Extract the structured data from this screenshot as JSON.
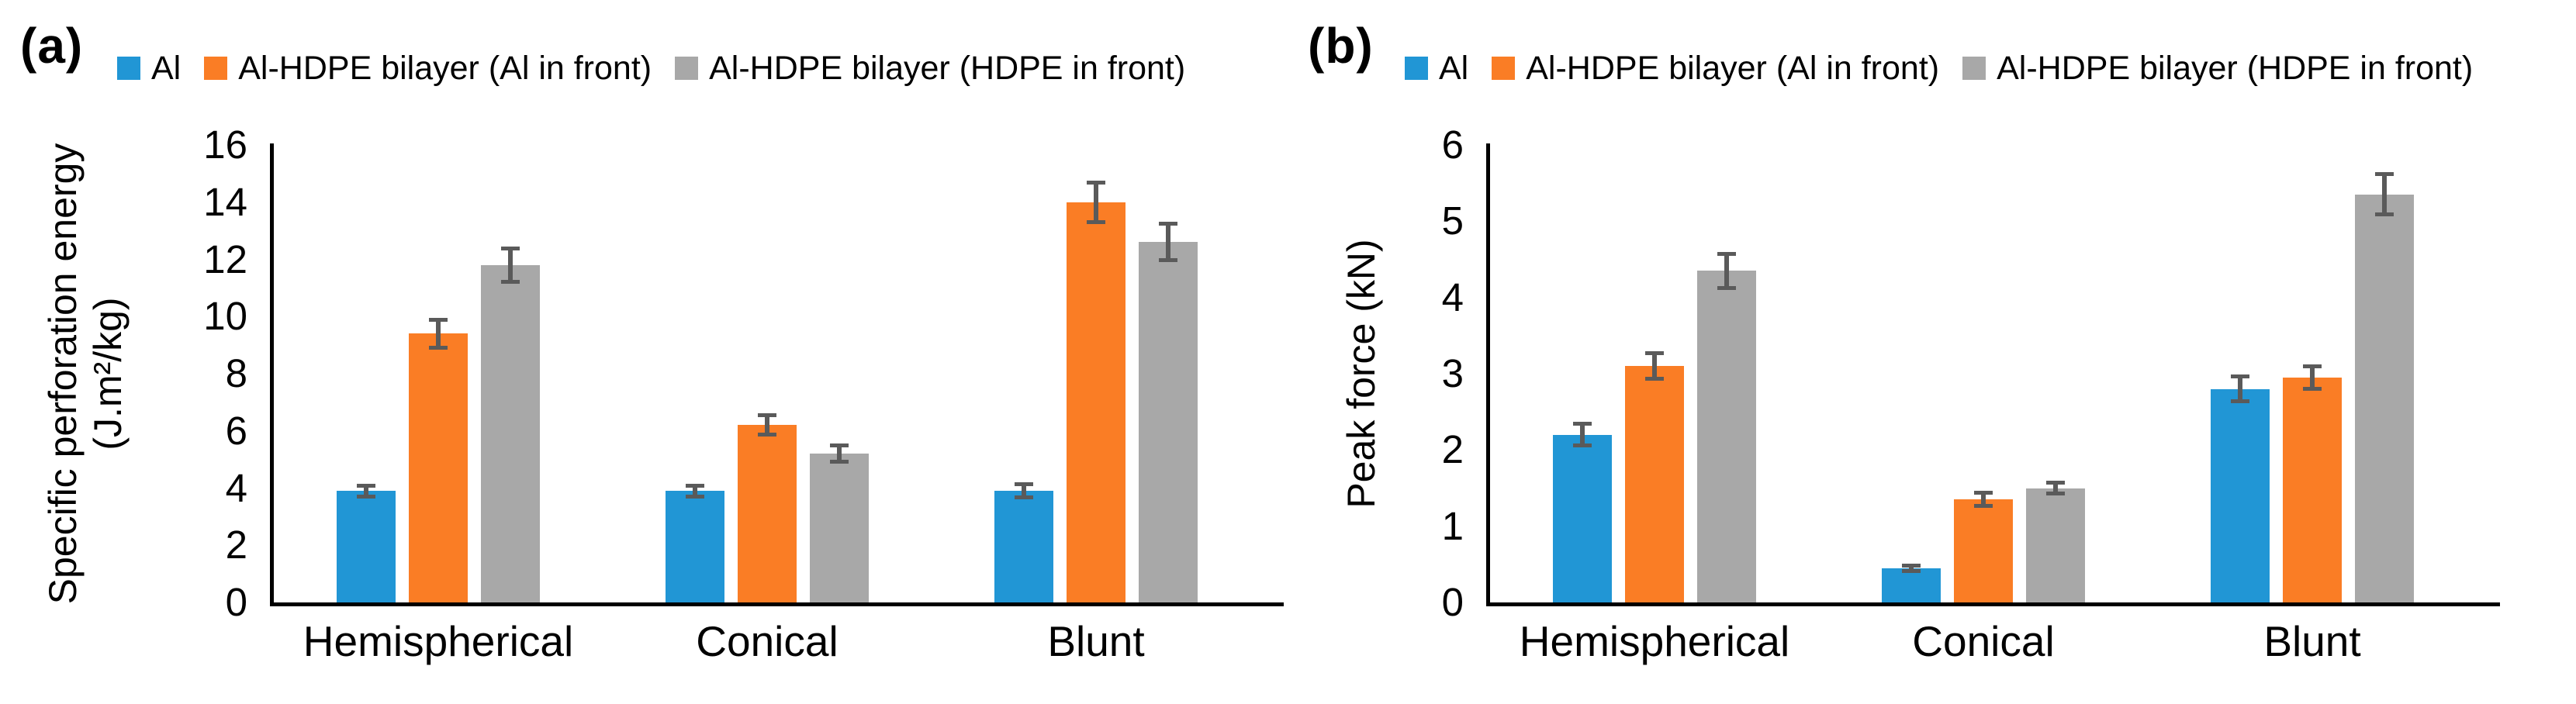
{
  "figure": {
    "panels": [
      {
        "panel_label": "(a)",
        "chart_index": 0
      },
      {
        "panel_label": "(b)",
        "chart_index": 1
      }
    ]
  },
  "colors": {
    "al": "#2196D5",
    "al_front": "#FA7D25",
    "hdpe_front": "#A8A8A8",
    "error_bar": "#5A5A5A",
    "axis": "#000000",
    "text": "#000000",
    "background": "#FFFFFF"
  },
  "chart_data": [
    {
      "type": "bar",
      "panel": "(a)",
      "title": "",
      "categories": [
        "Hemispherical",
        "Conical",
        "Blunt"
      ],
      "series": [
        {
          "name": "Al",
          "color_key": "al",
          "values": [
            3.9,
            3.9,
            3.9
          ],
          "errors": [
            0.2,
            0.2,
            0.25
          ]
        },
        {
          "name": "Al-HDPE bilayer (Al in front)",
          "color_key": "al_front",
          "values": [
            9.4,
            6.2,
            14.0
          ],
          "errors": [
            0.5,
            0.35,
            0.7
          ]
        },
        {
          "name": "Al-HDPE bilayer (HDPE in front)",
          "color_key": "hdpe_front",
          "values": [
            11.8,
            5.2,
            12.6
          ],
          "errors": [
            0.6,
            0.3,
            0.65
          ]
        }
      ],
      "xlabel": "",
      "ylabel_lines": [
        "Specific perforation energy",
        "(J.m²/kg)"
      ],
      "ylim": [
        0,
        16
      ],
      "ytick_step": 2,
      "yticks": [
        0,
        2,
        4,
        6,
        8,
        10,
        12,
        14,
        16
      ],
      "grid": false,
      "legend_position": "top",
      "error_bars": true
    },
    {
      "type": "bar",
      "panel": "(b)",
      "title": "",
      "categories": [
        "Hemispherical",
        "Conical",
        "Blunt"
      ],
      "series": [
        {
          "name": "Al",
          "color_key": "al",
          "values": [
            2.2,
            0.45,
            2.8
          ],
          "errors": [
            0.15,
            0.04,
            0.17
          ]
        },
        {
          "name": "Al-HDPE bilayer (Al in front)",
          "color_key": "al_front",
          "values": [
            3.1,
            1.35,
            2.95
          ],
          "errors": [
            0.17,
            0.09,
            0.15
          ]
        },
        {
          "name": "Al-HDPE bilayer (HDPE in front)",
          "color_key": "hdpe_front",
          "values": [
            4.35,
            1.5,
            5.35
          ],
          "errors": [
            0.23,
            0.08,
            0.27
          ]
        }
      ],
      "xlabel": "",
      "ylabel_lines": [
        "Peak force (kN)"
      ],
      "ylim": [
        0,
        6
      ],
      "ytick_step": 1,
      "yticks": [
        0,
        1,
        2,
        3,
        4,
        5,
        6
      ],
      "grid": false,
      "legend_position": "top",
      "error_bars": true
    }
  ]
}
